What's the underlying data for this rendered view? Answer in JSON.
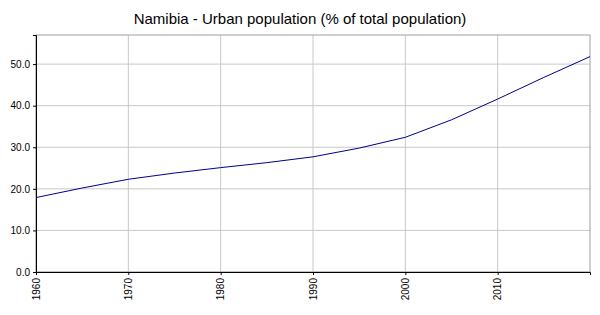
{
  "chart_data": {
    "type": "line",
    "title": "Namibia - Urban population (% of total population)",
    "x": [
      1960,
      1965,
      1970,
      1975,
      1980,
      1985,
      1990,
      1995,
      2000,
      2005,
      2010,
      2015,
      2020
    ],
    "series": [
      {
        "name": "Urban population (% of total population)",
        "color": "#00008b",
        "values": [
          17.9,
          20.2,
          22.3,
          23.8,
          25.1,
          26.3,
          27.7,
          29.8,
          32.4,
          36.6,
          41.6,
          46.8,
          51.8
        ]
      }
    ],
    "xlim": [
      1960,
      2020
    ],
    "ylim": [
      0,
      57
    ],
    "xticks": [
      1960,
      1970,
      1980,
      1990,
      2000,
      2010
    ],
    "yticks": [
      {
        "value": 0,
        "label": "0.0"
      },
      {
        "value": 10,
        "label": "10.0"
      },
      {
        "value": 20,
        "label": "20.0"
      },
      {
        "value": 30,
        "label": "30.0"
      },
      {
        "value": 40,
        "label": "40.0"
      },
      {
        "value": 50,
        "label": "50.0"
      }
    ],
    "grid": true
  }
}
